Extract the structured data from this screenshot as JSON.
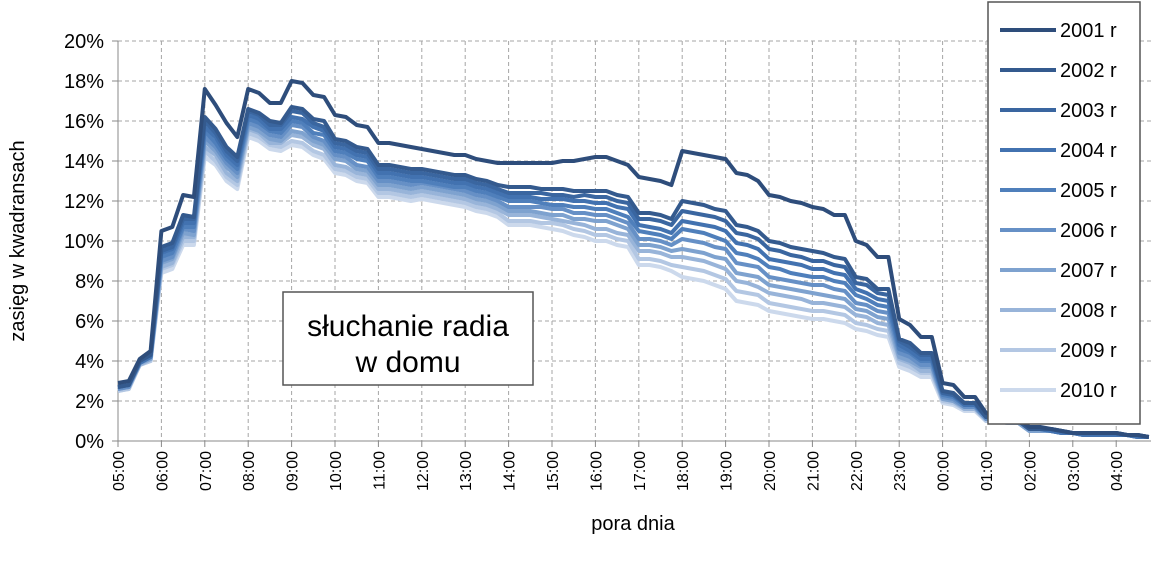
{
  "chart_data": {
    "type": "line",
    "x_label": "pora dnia",
    "y_label": "zasięg w kwadransach",
    "annotation": [
      "słuchanie radia",
      "w domu"
    ],
    "categories": [
      "05:00",
      null,
      null,
      null,
      "06:00",
      null,
      null,
      null,
      "07:00",
      null,
      null,
      null,
      "08:00",
      null,
      null,
      null,
      "09:00",
      null,
      null,
      null,
      "10:00",
      null,
      null,
      null,
      "11:00",
      null,
      null,
      null,
      "12:00",
      null,
      null,
      null,
      "13:00",
      null,
      null,
      null,
      "14:00",
      null,
      null,
      null,
      "15:00",
      null,
      null,
      null,
      "16:00",
      null,
      null,
      null,
      "17:00",
      null,
      null,
      null,
      "18:00",
      null,
      null,
      null,
      "19:00",
      null,
      null,
      null,
      "20:00",
      null,
      null,
      null,
      "21:00",
      null,
      null,
      null,
      "22:00",
      null,
      null,
      null,
      "23:00",
      null,
      null,
      null,
      "00:00",
      null,
      null,
      null,
      "01:00",
      null,
      null,
      null,
      "02:00",
      null,
      null,
      null,
      "03:00",
      null,
      null,
      null,
      "04:00",
      null,
      null,
      null
    ],
    "ylim": [
      0,
      20
    ],
    "yticks": [
      {
        "value": 0,
        "label": "0%"
      },
      {
        "value": 2,
        "label": "2%"
      },
      {
        "value": 4,
        "label": "4%"
      },
      {
        "value": 6,
        "label": "6%"
      },
      {
        "value": 8,
        "label": "8%"
      },
      {
        "value": 10,
        "label": "10%"
      },
      {
        "value": 12,
        "label": "12%"
      },
      {
        "value": 14,
        "label": "14%"
      },
      {
        "value": 16,
        "label": "16%"
      },
      {
        "value": 18,
        "label": "18%"
      },
      {
        "value": 20,
        "label": "20%"
      }
    ],
    "grid": true,
    "legend": "top-right",
    "series": [
      {
        "name": "2001 r",
        "color": "#2e4d7b",
        "values": [
          2.9,
          3.0,
          4.1,
          4.5,
          10.5,
          10.7,
          12.3,
          12.2,
          17.6,
          16.8,
          15.9,
          15.2,
          17.6,
          17.4,
          16.9,
          16.9,
          18.0,
          17.9,
          17.3,
          17.2,
          16.3,
          16.2,
          15.8,
          15.7,
          14.9,
          14.9,
          14.8,
          14.7,
          14.6,
          14.5,
          14.4,
          14.3,
          14.3,
          14.1,
          14.0,
          13.9,
          13.9,
          13.9,
          13.9,
          13.9,
          13.9,
          14.0,
          14.0,
          14.1,
          14.2,
          14.2,
          14.0,
          13.8,
          13.2,
          13.1,
          13.0,
          12.8,
          14.5,
          14.4,
          14.3,
          14.2,
          14.1,
          13.4,
          13.3,
          13.0,
          12.3,
          12.2,
          12.0,
          11.9,
          11.7,
          11.6,
          11.3,
          11.3,
          10.0,
          9.8,
          9.2,
          9.2,
          6.1,
          5.8,
          5.2,
          5.2,
          2.9,
          2.8,
          2.2,
          2.2,
          1.4,
          1.3,
          1.2,
          1.1,
          0.7,
          0.7,
          0.6,
          0.5,
          0.4,
          0.4,
          0.4,
          0.4,
          0.4,
          0.3,
          0.3,
          0.2
        ]
      },
      {
        "name": "2002 r",
        "color": "#345a8e",
        "values": [
          2.7,
          2.8,
          4.0,
          4.3,
          9.7,
          9.9,
          11.3,
          11.2,
          16.2,
          15.6,
          14.7,
          14.2,
          16.6,
          16.4,
          16.0,
          15.9,
          16.7,
          16.6,
          16.1,
          16.0,
          15.1,
          15.0,
          14.7,
          14.6,
          13.8,
          13.8,
          13.7,
          13.6,
          13.6,
          13.5,
          13.4,
          13.3,
          13.3,
          13.1,
          13.0,
          12.8,
          12.7,
          12.7,
          12.7,
          12.6,
          12.6,
          12.6,
          12.5,
          12.5,
          12.5,
          12.5,
          12.3,
          12.2,
          11.4,
          11.4,
          11.3,
          11.1,
          12.0,
          11.9,
          11.8,
          11.6,
          11.5,
          10.8,
          10.7,
          10.5,
          10.0,
          9.9,
          9.7,
          9.6,
          9.5,
          9.4,
          9.2,
          9.1,
          8.2,
          8.1,
          7.6,
          7.6,
          5.1,
          4.9,
          4.4,
          4.4,
          2.5,
          2.4,
          1.9,
          1.9,
          1.2,
          1.2,
          1.1,
          1.0,
          0.6,
          0.6,
          0.6,
          0.5,
          0.4,
          0.4,
          0.4,
          0.4,
          0.4,
          0.3,
          0.3,
          0.2
        ]
      },
      {
        "name": "2003 r",
        "color": "#3a66a0",
        "values": [
          2.7,
          2.8,
          4.0,
          4.3,
          9.5,
          9.7,
          11.1,
          11.1,
          16.0,
          15.4,
          14.5,
          14.0,
          16.5,
          16.3,
          15.8,
          15.8,
          16.5,
          16.4,
          15.9,
          15.7,
          14.9,
          14.8,
          14.5,
          14.4,
          13.6,
          13.6,
          13.5,
          13.4,
          13.4,
          13.3,
          13.2,
          13.1,
          13.1,
          12.9,
          12.8,
          12.6,
          12.4,
          12.4,
          12.4,
          12.4,
          12.3,
          12.3,
          12.2,
          12.3,
          12.2,
          12.2,
          12.0,
          11.9,
          11.1,
          11.1,
          11.0,
          10.8,
          11.5,
          11.4,
          11.3,
          11.2,
          11.0,
          10.4,
          10.3,
          10.1,
          9.6,
          9.5,
          9.3,
          9.2,
          9.0,
          9.0,
          8.8,
          8.7,
          7.9,
          7.8,
          7.4,
          7.3,
          5.0,
          4.7,
          4.3,
          4.3,
          2.4,
          2.3,
          1.9,
          1.9,
          1.2,
          1.2,
          1.1,
          1.0,
          0.6,
          0.6,
          0.6,
          0.5,
          0.4,
          0.4,
          0.4,
          0.4,
          0.4,
          0.3,
          0.3,
          0.2
        ]
      },
      {
        "name": "2004 r",
        "color": "#4272b0",
        "values": [
          2.7,
          2.8,
          3.9,
          4.2,
          9.4,
          9.6,
          10.9,
          10.9,
          15.7,
          15.2,
          14.3,
          13.8,
          16.3,
          16.1,
          15.6,
          15.6,
          16.2,
          16.1,
          15.7,
          15.5,
          14.7,
          14.6,
          14.3,
          14.2,
          13.4,
          13.4,
          13.3,
          13.2,
          13.2,
          13.1,
          13.0,
          12.9,
          12.9,
          12.7,
          12.6,
          12.4,
          12.2,
          12.2,
          12.2,
          12.1,
          12.1,
          12.1,
          12.0,
          12.0,
          11.9,
          11.9,
          11.7,
          11.6,
          10.8,
          10.7,
          10.6,
          10.4,
          11.0,
          10.9,
          10.8,
          10.7,
          10.5,
          9.9,
          9.8,
          9.6,
          9.1,
          9.0,
          8.9,
          8.8,
          8.6,
          8.6,
          8.4,
          8.3,
          7.6,
          7.4,
          7.1,
          7.0,
          4.8,
          4.5,
          4.1,
          4.1,
          2.4,
          2.3,
          1.8,
          1.8,
          1.2,
          1.1,
          1.0,
          1.0,
          0.6,
          0.6,
          0.5,
          0.4,
          0.4,
          0.3,
          0.3,
          0.3,
          0.3,
          0.3,
          0.2,
          0.2
        ]
      },
      {
        "name": "2005 r",
        "color": "#4f7fbb",
        "values": [
          2.7,
          2.8,
          3.9,
          4.2,
          9.2,
          9.4,
          10.7,
          10.7,
          15.5,
          14.9,
          14.1,
          13.6,
          16.1,
          15.9,
          15.5,
          15.4,
          16.0,
          15.9,
          15.4,
          15.3,
          14.5,
          14.4,
          14.1,
          14.0,
          13.2,
          13.2,
          13.1,
          13.0,
          13.0,
          12.9,
          12.8,
          12.7,
          12.7,
          12.5,
          12.4,
          12.2,
          12.0,
          12.0,
          12.0,
          11.9,
          11.8,
          11.8,
          11.7,
          11.7,
          11.6,
          11.6,
          11.4,
          11.2,
          10.5,
          10.4,
          10.3,
          10.1,
          10.6,
          10.5,
          10.4,
          10.2,
          10.0,
          9.4,
          9.3,
          9.1,
          8.7,
          8.6,
          8.4,
          8.3,
          8.2,
          8.2,
          8.0,
          7.9,
          7.3,
          7.1,
          6.8,
          6.7,
          4.6,
          4.4,
          4.0,
          4.0,
          2.3,
          2.2,
          1.8,
          1.8,
          1.2,
          1.1,
          1.0,
          1.0,
          0.6,
          0.6,
          0.5,
          0.4,
          0.4,
          0.3,
          0.3,
          0.3,
          0.3,
          0.3,
          0.2,
          0.2
        ]
      },
      {
        "name": "2006 r",
        "color": "#6690c6",
        "values": [
          2.6,
          2.7,
          3.9,
          4.2,
          9.0,
          9.2,
          10.6,
          10.5,
          15.2,
          14.7,
          13.9,
          13.4,
          15.9,
          15.7,
          15.3,
          15.2,
          15.8,
          15.7,
          15.2,
          15.0,
          14.3,
          14.2,
          13.8,
          13.7,
          13.0,
          13.0,
          12.9,
          12.8,
          12.9,
          12.8,
          12.7,
          12.6,
          12.5,
          12.3,
          12.2,
          12.0,
          11.7,
          11.7,
          11.7,
          11.7,
          11.6,
          11.6,
          11.4,
          11.4,
          11.3,
          11.3,
          11.1,
          10.9,
          10.1,
          10.1,
          10.0,
          9.8,
          10.1,
          10.0,
          9.9,
          9.7,
          9.6,
          8.9,
          8.8,
          8.7,
          8.2,
          8.1,
          8.0,
          7.9,
          7.8,
          7.8,
          7.6,
          7.5,
          6.9,
          6.8,
          6.5,
          6.4,
          4.4,
          4.2,
          3.8,
          3.8,
          2.2,
          2.1,
          1.7,
          1.7,
          1.1,
          1.1,
          1.0,
          1.0,
          0.6,
          0.6,
          0.5,
          0.4,
          0.4,
          0.3,
          0.3,
          0.3,
          0.3,
          0.3,
          0.2,
          0.2
        ]
      },
      {
        "name": "2007 r",
        "color": "#7ea2cf",
        "values": [
          2.6,
          2.7,
          3.9,
          4.1,
          8.9,
          9.1,
          10.4,
          10.3,
          15.0,
          14.5,
          13.7,
          13.2,
          15.7,
          15.5,
          15.1,
          15.0,
          15.5,
          15.4,
          15.0,
          14.8,
          14.1,
          14.0,
          13.6,
          13.5,
          12.8,
          12.8,
          12.7,
          12.6,
          12.7,
          12.6,
          12.5,
          12.4,
          12.3,
          12.1,
          12.0,
          11.8,
          11.5,
          11.5,
          11.5,
          11.4,
          11.3,
          11.3,
          11.1,
          11.1,
          11.0,
          11.0,
          10.8,
          10.6,
          9.8,
          9.8,
          9.7,
          9.5,
          9.6,
          9.5,
          9.4,
          9.2,
          9.1,
          8.4,
          8.3,
          8.2,
          7.8,
          7.7,
          7.6,
          7.5,
          7.4,
          7.3,
          7.2,
          7.1,
          6.6,
          6.5,
          6.2,
          6.1,
          4.2,
          4.0,
          3.7,
          3.7,
          2.1,
          2.0,
          1.7,
          1.7,
          1.1,
          1.1,
          1.0,
          0.9,
          0.5,
          0.5,
          0.5,
          0.4,
          0.4,
          0.3,
          0.3,
          0.3,
          0.3,
          0.3,
          0.2,
          0.2
        ]
      },
      {
        "name": "2008 r",
        "color": "#98b4d9",
        "values": [
          2.6,
          2.7,
          3.8,
          4.1,
          8.7,
          8.9,
          10.2,
          10.2,
          14.7,
          14.3,
          13.4,
          13.0,
          15.6,
          15.4,
          14.9,
          14.9,
          15.3,
          15.2,
          14.8,
          14.6,
          13.8,
          13.7,
          13.4,
          13.3,
          12.6,
          12.6,
          12.5,
          12.4,
          12.5,
          12.4,
          12.3,
          12.2,
          12.1,
          11.9,
          11.8,
          11.6,
          11.3,
          11.3,
          11.3,
          11.2,
          11.1,
          11.0,
          10.9,
          10.8,
          10.6,
          10.6,
          10.4,
          10.3,
          9.5,
          9.5,
          9.4,
          9.2,
          9.2,
          9.1,
          9.0,
          8.8,
          8.6,
          8.0,
          7.9,
          7.7,
          7.4,
          7.3,
          7.2,
          7.1,
          6.9,
          6.9,
          6.8,
          6.7,
          6.3,
          6.2,
          5.9,
          5.8,
          4.1,
          3.9,
          3.5,
          3.5,
          2.1,
          2.0,
          1.6,
          1.6,
          1.1,
          1.0,
          0.9,
          0.9,
          0.5,
          0.5,
          0.5,
          0.4,
          0.4,
          0.3,
          0.3,
          0.3,
          0.3,
          0.3,
          0.2,
          0.2
        ]
      },
      {
        "name": "2009 r",
        "color": "#b3c7e3",
        "values": [
          2.5,
          2.6,
          3.8,
          4.0,
          8.6,
          8.8,
          10.0,
          10.0,
          14.5,
          14.0,
          13.2,
          12.8,
          15.4,
          15.2,
          14.8,
          14.7,
          15.0,
          14.9,
          14.5,
          14.3,
          13.6,
          13.5,
          13.2,
          13.1,
          12.4,
          12.4,
          12.3,
          12.2,
          12.3,
          12.2,
          12.1,
          12.0,
          11.9,
          11.7,
          11.6,
          11.4,
          11.0,
          11.0,
          11.0,
          10.9,
          10.9,
          10.8,
          10.6,
          10.5,
          10.3,
          10.3,
          10.1,
          10.0,
          9.1,
          9.1,
          9.0,
          8.8,
          8.7,
          8.6,
          8.5,
          8.3,
          8.1,
          7.5,
          7.4,
          7.3,
          6.9,
          6.8,
          6.7,
          6.6,
          6.5,
          6.5,
          6.4,
          6.3,
          5.9,
          5.8,
          5.6,
          5.5,
          3.9,
          3.7,
          3.4,
          3.4,
          2.0,
          1.9,
          1.6,
          1.6,
          1.0,
          1.0,
          0.9,
          0.9,
          0.5,
          0.5,
          0.5,
          0.4,
          0.4,
          0.3,
          0.3,
          0.3,
          0.3,
          0.3,
          0.2,
          0.2
        ]
      },
      {
        "name": "2010 r",
        "color": "#ccd9ec",
        "values": [
          2.5,
          2.6,
          3.8,
          4.0,
          8.4,
          8.6,
          9.8,
          9.8,
          14.2,
          13.8,
          13.0,
          12.6,
          15.2,
          15.0,
          14.6,
          14.5,
          14.8,
          14.7,
          14.3,
          14.1,
          13.4,
          13.3,
          13.0,
          12.9,
          12.2,
          12.2,
          12.1,
          12.0,
          12.1,
          12.0,
          11.9,
          11.8,
          11.7,
          11.5,
          11.4,
          11.2,
          10.8,
          10.8,
          10.8,
          10.7,
          10.6,
          10.5,
          10.3,
          10.2,
          10.0,
          10.0,
          9.8,
          9.7,
          8.8,
          8.8,
          8.7,
          8.5,
          8.2,
          8.1,
          8.0,
          7.8,
          7.6,
          7.0,
          6.9,
          6.8,
          6.5,
          6.4,
          6.3,
          6.2,
          6.1,
          6.1,
          6.0,
          5.9,
          5.6,
          5.5,
          5.3,
          5.2,
          3.7,
          3.5,
          3.2,
          3.2,
          1.9,
          1.8,
          1.5,
          1.5,
          1.0,
          1.0,
          0.9,
          0.9,
          0.5,
          0.5,
          0.5,
          0.4,
          0.4,
          0.3,
          0.3,
          0.3,
          0.3,
          0.3,
          0.2,
          0.2
        ]
      }
    ]
  }
}
